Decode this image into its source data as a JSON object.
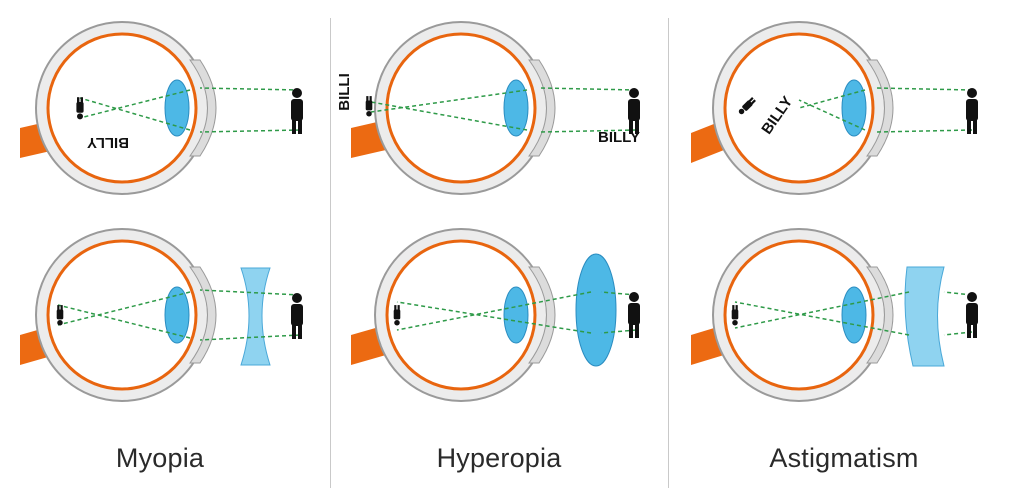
{
  "conditions": [
    {
      "title": "Myopia",
      "retina_label": "BILLY"
    },
    {
      "title": "Hyperopia",
      "retina_label": "BILLI",
      "object_label": "BILLY"
    },
    {
      "title": "Astigmatism",
      "retina_label": "BILLY"
    }
  ],
  "colors": {
    "sclera_fill": "#ececec",
    "sclera_stroke": "#9a9a9a",
    "retina": "#e8650f",
    "optic_nerve": "#ec6a12",
    "lens": "#4db8e6",
    "correction_lens": "#8fd3f0",
    "ray": "#2e9a48",
    "figure": "#111111"
  }
}
